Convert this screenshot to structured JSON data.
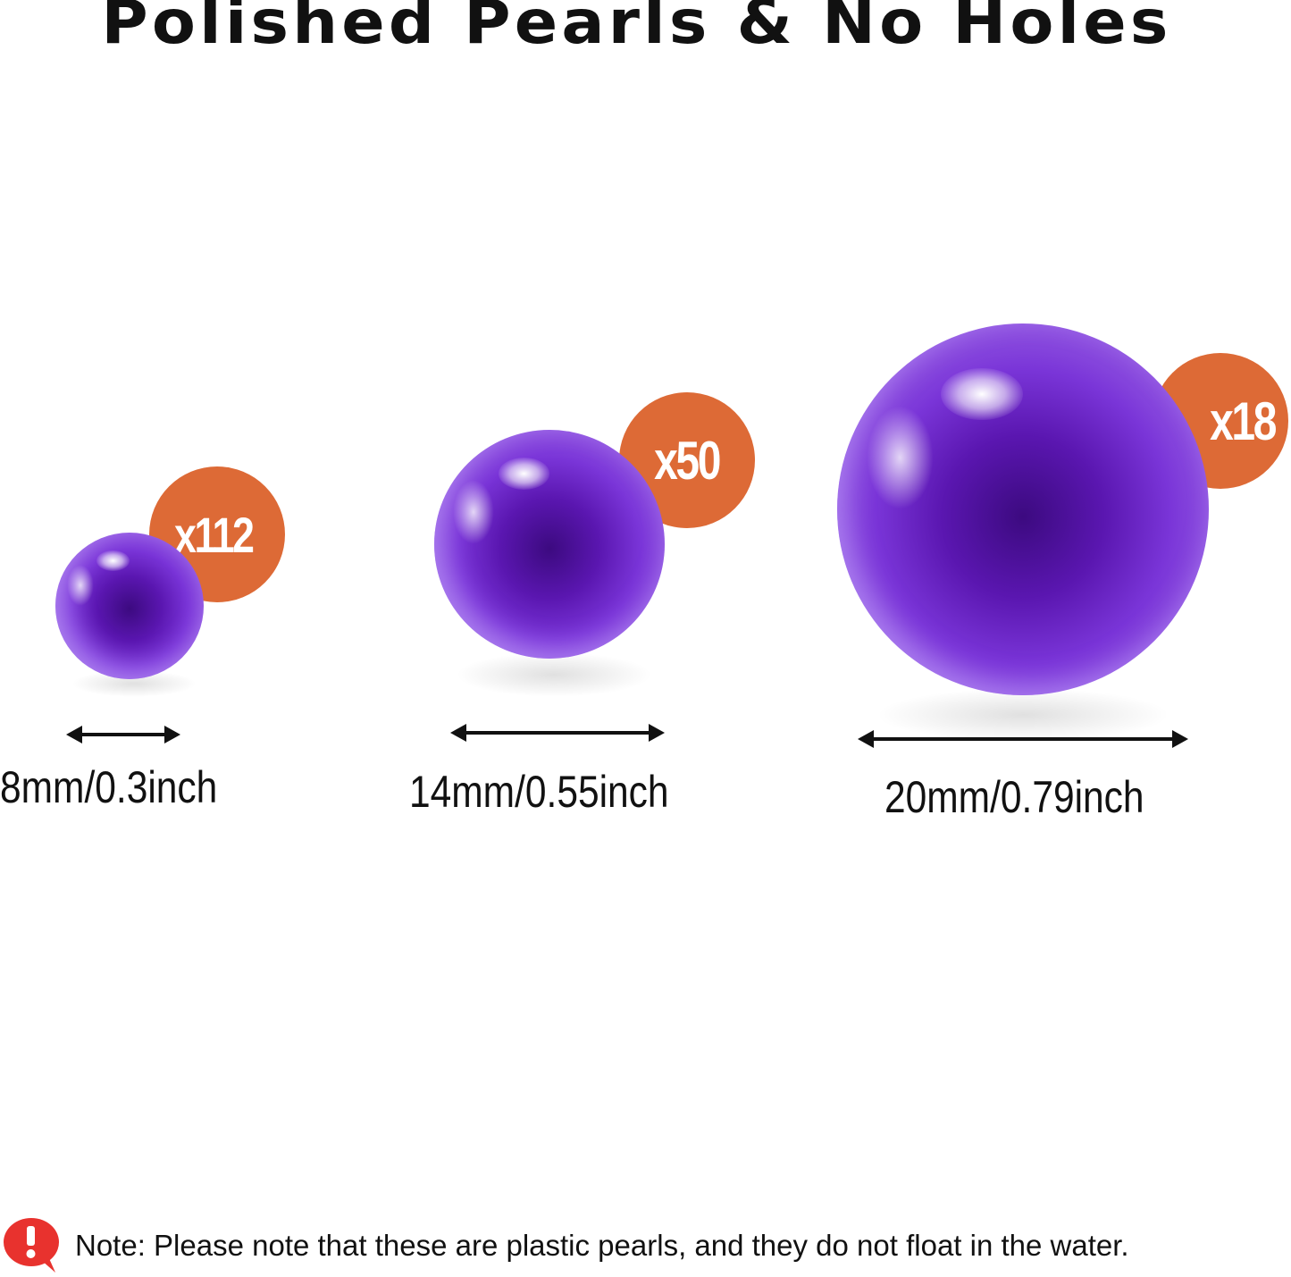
{
  "title": "Polished Pearls & No Holes",
  "colors": {
    "badge": "#dd6a36",
    "pearl": "#6a22c8",
    "alert": "#e8322e"
  },
  "pearls": [
    {
      "quantity": "x112",
      "size": "8mm/0.3inch"
    },
    {
      "quantity": "x50",
      "size": "14mm/0.55inch"
    },
    {
      "quantity": "x18",
      "size": "20mm/0.79inch"
    }
  ],
  "note": {
    "icon": "exclamation-speech-bubble-icon",
    "text": "Note: Please note that these are plastic pearls, and they do not float in the water."
  }
}
